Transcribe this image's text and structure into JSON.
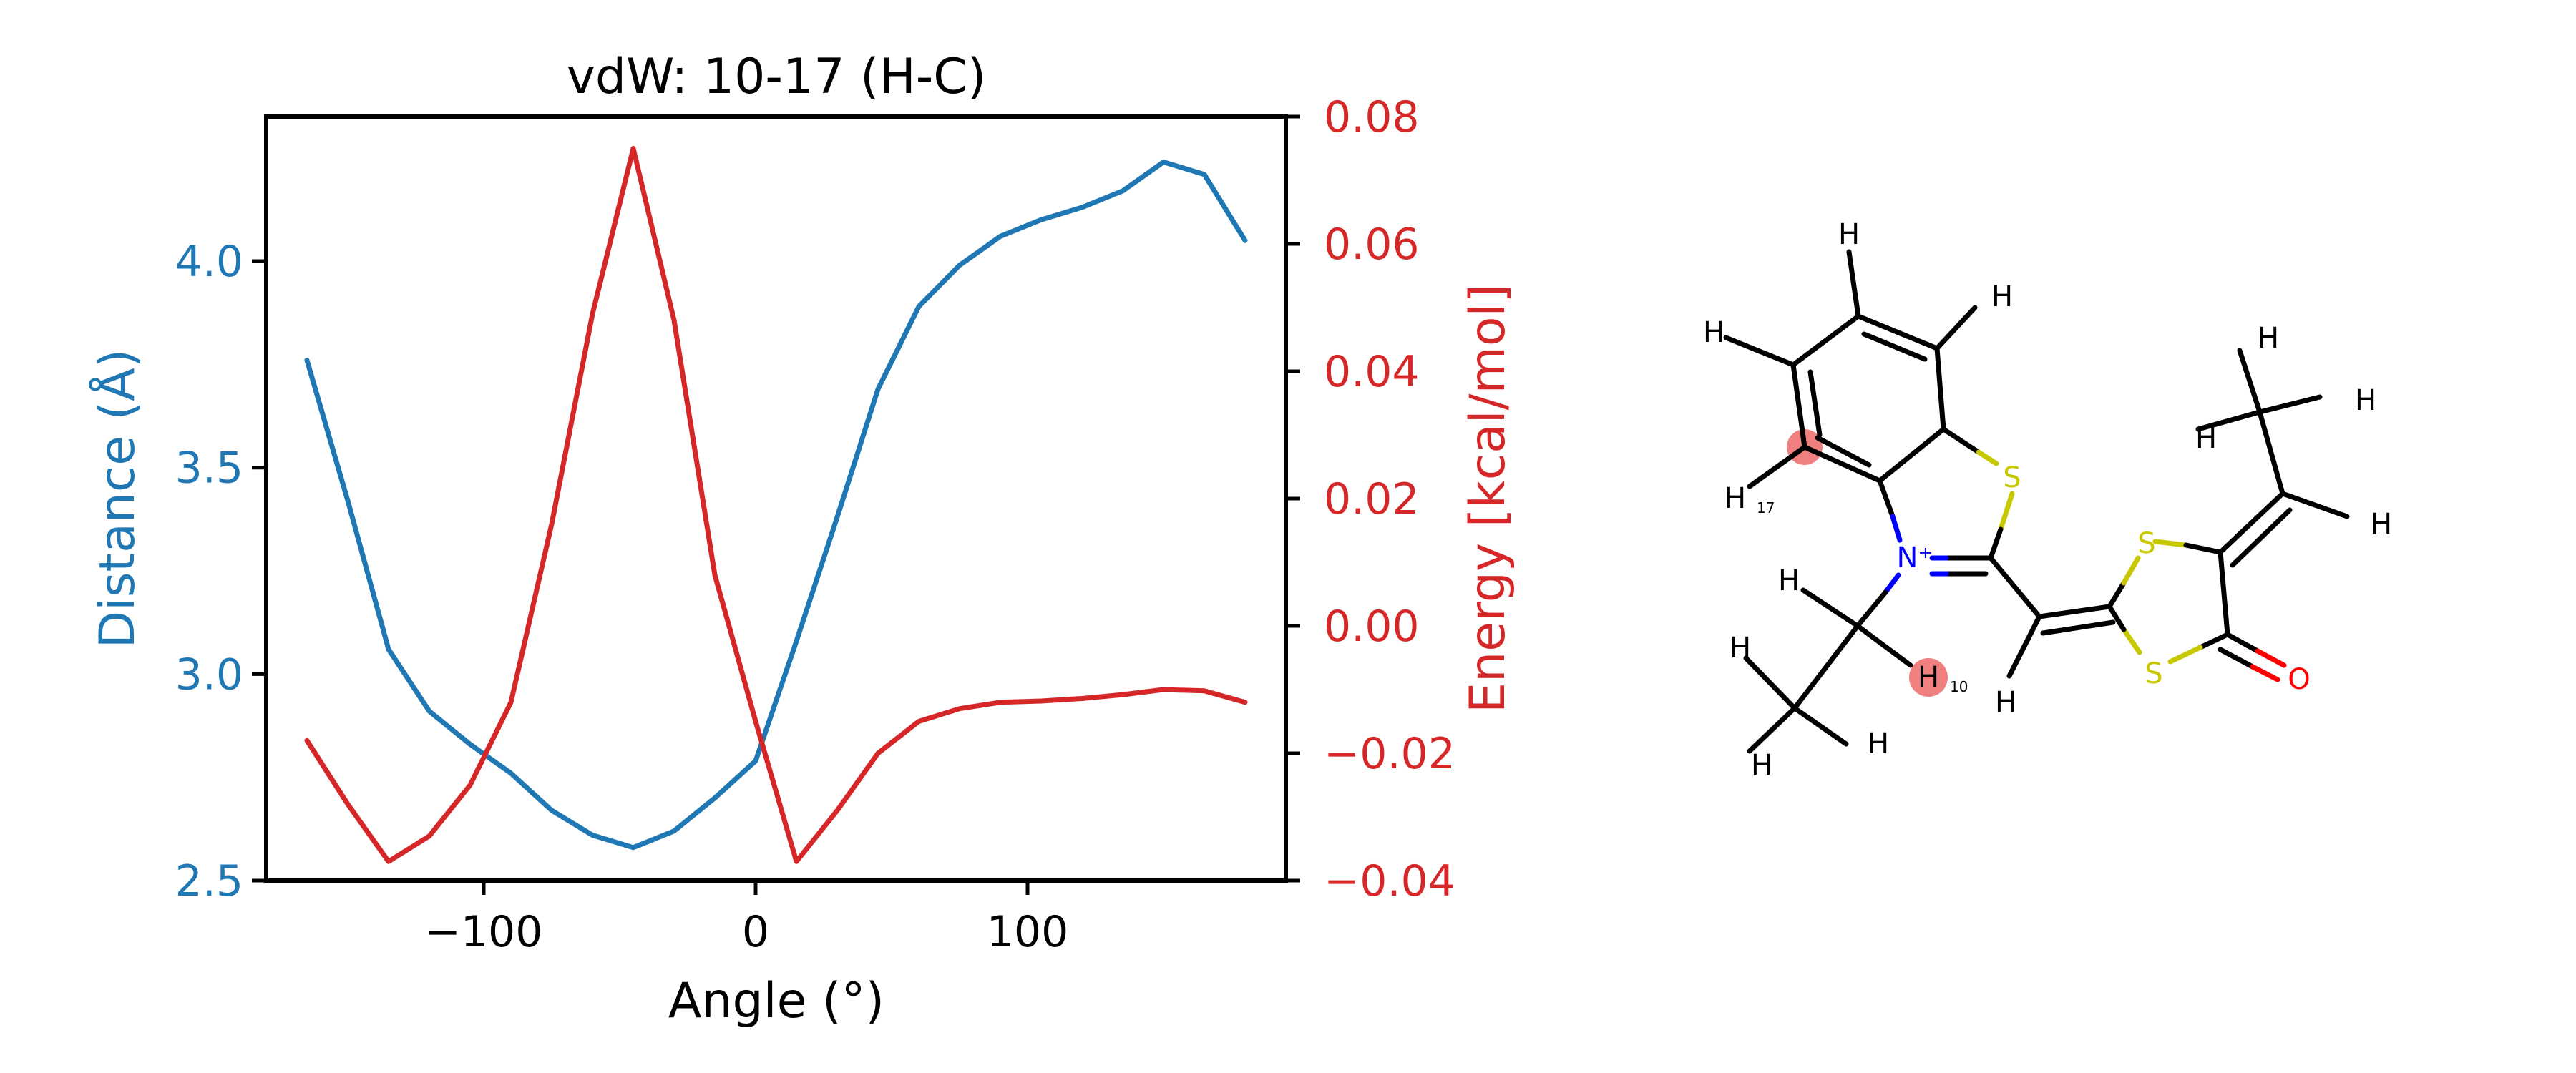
{
  "chart_data": {
    "type": "line",
    "title": "vdW: 10-17 (H-C)",
    "xlabel": "Angle (°)",
    "ylabel_left": "Distance (Å)",
    "ylabel_right": "Energy [kcal/mol]",
    "xlim": [
      -180,
      195
    ],
    "ylim_left": [
      2.5,
      4.35
    ],
    "ylim_right": [
      -0.04,
      0.08
    ],
    "x_ticks": [
      -100,
      0,
      100
    ],
    "x_tick_labels": [
      "−100",
      "0",
      "100"
    ],
    "y_left_ticks": [
      2.5,
      3.0,
      3.5,
      4.0
    ],
    "y_left_tick_labels": [
      "2.5",
      "3.0",
      "3.5",
      "4.0"
    ],
    "y_right_ticks": [
      -0.04,
      -0.02,
      0.0,
      0.02,
      0.04,
      0.06,
      0.08
    ],
    "y_right_tick_labels": [
      "−0.04",
      "−0.02",
      "0.00",
      "0.02",
      "0.04",
      "0.06",
      "0.08"
    ],
    "colors": {
      "distance": "#1f77b4",
      "energy": "#d62728",
      "axis": "#000000"
    },
    "x": [
      -165,
      -150,
      -135,
      -120,
      -105,
      -90,
      -75,
      -60,
      -45,
      -30,
      -15,
      0,
      15,
      30,
      45,
      60,
      75,
      90,
      105,
      120,
      135,
      150,
      165,
      180
    ],
    "series": [
      {
        "axis": "left",
        "color": "#1f77b4",
        "values": [
          3.76,
          3.42,
          3.06,
          2.91,
          2.83,
          2.76,
          2.67,
          2.61,
          2.58,
          2.62,
          2.7,
          2.79,
          3.08,
          3.38,
          3.69,
          3.89,
          3.99,
          4.06,
          4.1,
          4.13,
          4.17,
          4.24,
          4.21,
          4.05
        ]
      },
      {
        "axis": "right",
        "color": "#d62728",
        "values": [
          -0.018,
          -0.028,
          -0.037,
          -0.033,
          -0.025,
          -0.012,
          0.016,
          0.049,
          0.075,
          0.048,
          0.008,
          -0.015,
          -0.037,
          -0.029,
          -0.02,
          -0.015,
          -0.013,
          -0.012,
          -0.0118,
          -0.0114,
          -0.0108,
          -0.01,
          -0.0102,
          -0.012
        ]
      }
    ]
  },
  "molecule": {
    "atoms": [
      {
        "id": "c1",
        "label": ""
      },
      {
        "id": "c2",
        "label": ""
      },
      {
        "id": "c3",
        "label": ""
      },
      {
        "id": "c4",
        "label": ""
      },
      {
        "id": "c5",
        "label": ""
      },
      {
        "id": "c6",
        "label": ""
      },
      {
        "id": "s1",
        "label": "S",
        "color": "#c8c800"
      },
      {
        "id": "c7",
        "label": ""
      },
      {
        "id": "n1",
        "label": "N⁺",
        "color": "#0000ff"
      },
      {
        "id": "c8",
        "label": ""
      },
      {
        "id": "c9",
        "label": ""
      },
      {
        "id": "c10",
        "label": ""
      },
      {
        "id": "c11",
        "label": ""
      },
      {
        "id": "s2",
        "label": "S",
        "color": "#c8c800"
      },
      {
        "id": "s3",
        "label": "S",
        "color": "#c8c800"
      },
      {
        "id": "c12",
        "label": ""
      },
      {
        "id": "c13",
        "label": ""
      },
      {
        "id": "c14",
        "label": ""
      },
      {
        "id": "c15",
        "label": ""
      },
      {
        "id": "o1",
        "label": "O",
        "color": "#ff0000"
      },
      {
        "id": "h1",
        "label": "H"
      },
      {
        "id": "h2",
        "label": "H"
      },
      {
        "id": "h3",
        "label": "H"
      },
      {
        "id": "h4",
        "label": "H",
        "index": "17",
        "highlight": true
      },
      {
        "id": "h5",
        "label": "H"
      },
      {
        "id": "h6",
        "label": "H"
      },
      {
        "id": "h7",
        "label": "H"
      },
      {
        "id": "h8",
        "label": "H"
      },
      {
        "id": "h9",
        "label": "H",
        "index": "10",
        "highlight": true
      },
      {
        "id": "h10",
        "label": "H"
      },
      {
        "id": "h11",
        "label": "H"
      },
      {
        "id": "h12",
        "label": "H"
      },
      {
        "id": "h13",
        "label": "H"
      },
      {
        "id": "h14",
        "label": "H"
      }
    ],
    "highlight_color": "#f08080"
  }
}
